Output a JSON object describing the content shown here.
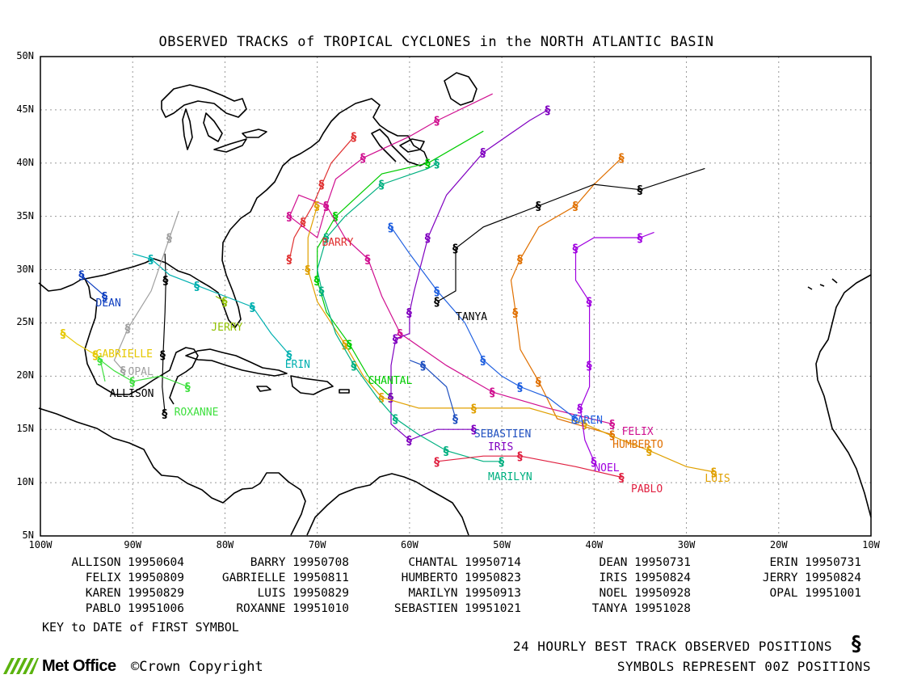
{
  "title": "OBSERVED TRACKS of TROPICAL CYCLONES in the NORTH ATLANTIC BASIN",
  "map": {
    "lon_range": [
      -100,
      -10
    ],
    "lat_range": [
      5,
      50
    ],
    "lat_labels": [
      "50N",
      "45N",
      "40N",
      "35N",
      "30N",
      "25N",
      "20N",
      "15N",
      "10N",
      "5N"
    ],
    "lat_values": [
      50,
      45,
      40,
      35,
      30,
      25,
      20,
      15,
      10,
      5
    ],
    "lon_labels": [
      "100W",
      "90W",
      "80W",
      "70W",
      "60W",
      "50W",
      "40W",
      "30W",
      "20W",
      "10W"
    ],
    "lon_values": [
      -100,
      -90,
      -80,
      -70,
      -60,
      -50,
      -40,
      -30,
      -20,
      -10
    ]
  },
  "storms": [
    {
      "name": "ALLISON",
      "color": "#000000",
      "label_lon": -92.5,
      "label_lat": 18.3,
      "track": [
        [
          -86.5,
          16.5
        ],
        [
          -86.8,
          19
        ],
        [
          -86.7,
          22
        ],
        [
          -86.5,
          26
        ],
        [
          -86.4,
          29
        ],
        [
          -86.5,
          31.5
        ]
      ]
    },
    {
      "name": "BARRY",
      "color": "#e03030",
      "label_lon": -69.5,
      "label_lat": 32.5,
      "track": [
        [
          -73,
          31
        ],
        [
          -72.5,
          33
        ],
        [
          -71.5,
          34.5
        ],
        [
          -70.5,
          36
        ],
        [
          -69.5,
          38
        ],
        [
          -68.5,
          40
        ],
        [
          -66,
          42.5
        ]
      ]
    },
    {
      "name": "CHANTAL",
      "color": "#00cc00",
      "label_lon": -64.5,
      "label_lat": 19.5,
      "track": [
        [
          -62,
          18
        ],
        [
          -64.5,
          20
        ],
        [
          -66.5,
          23
        ],
        [
          -69,
          26
        ],
        [
          -70,
          29
        ],
        [
          -70,
          32
        ],
        [
          -68,
          35
        ],
        [
          -63,
          39
        ],
        [
          -58,
          40
        ],
        [
          -52,
          43
        ]
      ]
    },
    {
      "name": "DEAN",
      "color": "#1040c0",
      "label_lon": -94,
      "label_lat": 26.8,
      "track": [
        [
          -93,
          27.5
        ],
        [
          -95,
          29
        ],
        [
          -95.5,
          29.5
        ]
      ]
    },
    {
      "name": "ERIN",
      "color": "#00b0b0",
      "label_lon": -73.5,
      "label_lat": 21,
      "track": [
        [
          -73,
          22
        ],
        [
          -75,
          24
        ],
        [
          -77,
          26.5
        ],
        [
          -80,
          27.5
        ],
        [
          -83,
          28.5
        ],
        [
          -86,
          29.5
        ],
        [
          -88,
          31
        ],
        [
          -90,
          31.5
        ]
      ]
    },
    {
      "name": "FELIX",
      "color": "#d01090",
      "label_lon": -37,
      "label_lat": 14.7,
      "track": [
        [
          -38,
          15.5
        ],
        [
          -45,
          17
        ],
        [
          -51,
          18.5
        ],
        [
          -56,
          21
        ],
        [
          -61,
          24
        ],
        [
          -63,
          27.5
        ],
        [
          -64.5,
          31
        ],
        [
          -67,
          33
        ],
        [
          -69,
          36
        ],
        [
          -72,
          37
        ],
        [
          -73,
          35
        ],
        [
          -70,
          33
        ],
        [
          -69,
          36
        ],
        [
          -68,
          38.5
        ],
        [
          -65,
          40.5
        ],
        [
          -60,
          42.5
        ],
        [
          -57,
          44
        ],
        [
          -51,
          46.5
        ]
      ]
    },
    {
      "name": "GABRIELLE",
      "color": "#e6c800",
      "label_lon": -94,
      "label_lat": 22,
      "track": [
        [
          -94,
          22
        ],
        [
          -96,
          23
        ],
        [
          -97.5,
          24
        ]
      ]
    },
    {
      "name": "HUMBERTO",
      "color": "#e07000",
      "label_lon": -38,
      "label_lat": 13.5,
      "track": [
        [
          -38,
          14.5
        ],
        [
          -44,
          16
        ],
        [
          -46,
          19.5
        ],
        [
          -48,
          22.5
        ],
        [
          -48.5,
          26
        ],
        [
          -49,
          29
        ],
        [
          -48,
          31
        ],
        [
          -46,
          34
        ],
        [
          -42,
          36
        ],
        [
          -40,
          38
        ],
        [
          -37,
          40.5
        ]
      ]
    },
    {
      "name": "IRIS",
      "color": "#8000c0",
      "label_lon": -51.5,
      "label_lat": 13.3,
      "track": [
        [
          -53,
          15
        ],
        [
          -57,
          15
        ],
        [
          -60,
          14
        ],
        [
          -62,
          15.5
        ],
        [
          -62,
          18
        ],
        [
          -62,
          21
        ],
        [
          -61.5,
          23.5
        ],
        [
          -60,
          24
        ],
        [
          -60,
          26
        ],
        [
          -59.5,
          28
        ],
        [
          -58,
          33
        ],
        [
          -56,
          37
        ],
        [
          -52,
          41
        ],
        [
          -47,
          44
        ],
        [
          -45,
          45
        ]
      ]
    },
    {
      "name": "JERRY",
      "color": "#90c000",
      "label_lon": -81.5,
      "label_lat": 24.5,
      "track": [
        [
          -80,
          27
        ],
        [
          -81,
          27.5
        ]
      ]
    },
    {
      "name": "KAREN",
      "color": "#2060e0",
      "label_lon": -42.5,
      "label_lat": 15.8,
      "track": [
        [
          -42,
          16
        ],
        [
          -45,
          18
        ],
        [
          -48,
          19
        ],
        [
          -50,
          20
        ],
        [
          -52,
          21.5
        ],
        [
          -54,
          25
        ],
        [
          -57,
          28
        ],
        [
          -60,
          31.5
        ],
        [
          -62,
          34
        ]
      ]
    },
    {
      "name": "LUIS",
      "color": "#e0a000",
      "label_lon": -28,
      "label_lat": 10.3,
      "track": [
        [
          -27,
          11
        ],
        [
          -30,
          11.5
        ],
        [
          -34,
          13
        ],
        [
          -37,
          14
        ],
        [
          -41,
          15.5
        ],
        [
          -47,
          17
        ],
        [
          -53,
          17
        ],
        [
          -59,
          17
        ],
        [
          -63,
          18
        ],
        [
          -65,
          20
        ],
        [
          -67,
          23
        ],
        [
          -70,
          27
        ],
        [
          -71,
          30
        ],
        [
          -71,
          33
        ],
        [
          -70,
          36
        ]
      ]
    },
    {
      "name": "MARILYN",
      "color": "#00b080",
      "label_lon": -51.5,
      "label_lat": 10.5,
      "track": [
        [
          -50,
          12
        ],
        [
          -52,
          12
        ],
        [
          -56,
          13
        ],
        [
          -59,
          14.5
        ],
        [
          -61.5,
          16
        ],
        [
          -63.5,
          18
        ],
        [
          -66,
          21
        ],
        [
          -68,
          24
        ],
        [
          -69.5,
          28
        ],
        [
          -70,
          30
        ],
        [
          -69,
          33
        ],
        [
          -67,
          35
        ],
        [
          -63,
          38
        ],
        [
          -58,
          39.5
        ],
        [
          -57,
          40
        ]
      ]
    },
    {
      "name": "NOEL",
      "color": "#a000e0",
      "label_lon": -40,
      "label_lat": 11.3,
      "track": [
        [
          -40,
          12
        ],
        [
          -41,
          14
        ],
        [
          -41.5,
          17
        ],
        [
          -40.5,
          19
        ],
        [
          -40.5,
          21
        ],
        [
          -40.5,
          24
        ],
        [
          -40.5,
          27
        ],
        [
          -42,
          29
        ],
        [
          -42,
          32
        ],
        [
          -40,
          33
        ],
        [
          -35,
          33
        ],
        [
          -33.5,
          33.5
        ]
      ]
    },
    {
      "name": "OPAL",
      "color": "#a0a0a0",
      "label_lon": -90.5,
      "label_lat": 20.3,
      "track": [
        [
          -91,
          20.5
        ],
        [
          -92,
          21.5
        ],
        [
          -90.5,
          24.5
        ],
        [
          -88,
          28
        ],
        [
          -86,
          33
        ],
        [
          -85,
          35.5
        ]
      ]
    },
    {
      "name": "PABLO",
      "color": "#e02040",
      "label_lon": -36,
      "label_lat": 9.3,
      "track": [
        [
          -37,
          10.5
        ],
        [
          -42,
          11.5
        ],
        [
          -48,
          12.5
        ],
        [
          -52,
          12.5
        ],
        [
          -57,
          12
        ]
      ]
    },
    {
      "name": "ROXANNE",
      "color": "#40e040",
      "label_lon": -85.5,
      "label_lat": 16.5,
      "track": [
        [
          -84,
          19
        ],
        [
          -87,
          20
        ],
        [
          -90,
          19.5
        ],
        [
          -92,
          20.5
        ],
        [
          -93.5,
          21.5
        ],
        [
          -93,
          19.5
        ]
      ]
    },
    {
      "name": "SEBASTIEN",
      "color": "#2050c0",
      "label_lon": -53,
      "label_lat": 14.5,
      "track": [
        [
          -55,
          16
        ],
        [
          -56,
          19
        ],
        [
          -58.5,
          21
        ],
        [
          -60,
          21.5
        ]
      ]
    },
    {
      "name": "TANYA",
      "color": "#000000",
      "label_lon": -55,
      "label_lat": 25.5,
      "track": [
        [
          -57,
          27
        ],
        [
          -55,
          28
        ],
        [
          -55,
          32
        ],
        [
          -52,
          34
        ],
        [
          -46,
          36
        ],
        [
          -40,
          38
        ],
        [
          -35,
          37.5
        ],
        [
          -28,
          39.5
        ]
      ]
    }
  ],
  "key": [
    [
      "ALLISON 19950604",
      "BARRY 19950708",
      "CHANTAL 19950714",
      "DEAN 19950731",
      "ERIN 19950731"
    ],
    [
      "FELIX 19950809",
      "GABRIELLE 19950811",
      "HUMBERTO 19950823",
      "IRIS 19950824",
      "JERRY 19950824"
    ],
    [
      "KAREN 19950829",
      "LUIS 19950829",
      "MARILYN 19950913",
      "NOEL 19950928",
      "OPAL 19951001"
    ],
    [
      "PABLO 19951006",
      "ROXANNE 19951010",
      "SEBASTIEN 19951021",
      "TANYA 19951028"
    ]
  ],
  "key_note": "KEY to DATE of FIRST SYMBOL",
  "footer_line1": "24 HOURLY BEST TRACK OBSERVED POSITIONS",
  "footer_line2": "SYMBOLS REPRESENT 00Z POSITIONS",
  "logo_text": "Met Office",
  "copyright": "©Crown Copyright",
  "cyclone_symbol": "§"
}
